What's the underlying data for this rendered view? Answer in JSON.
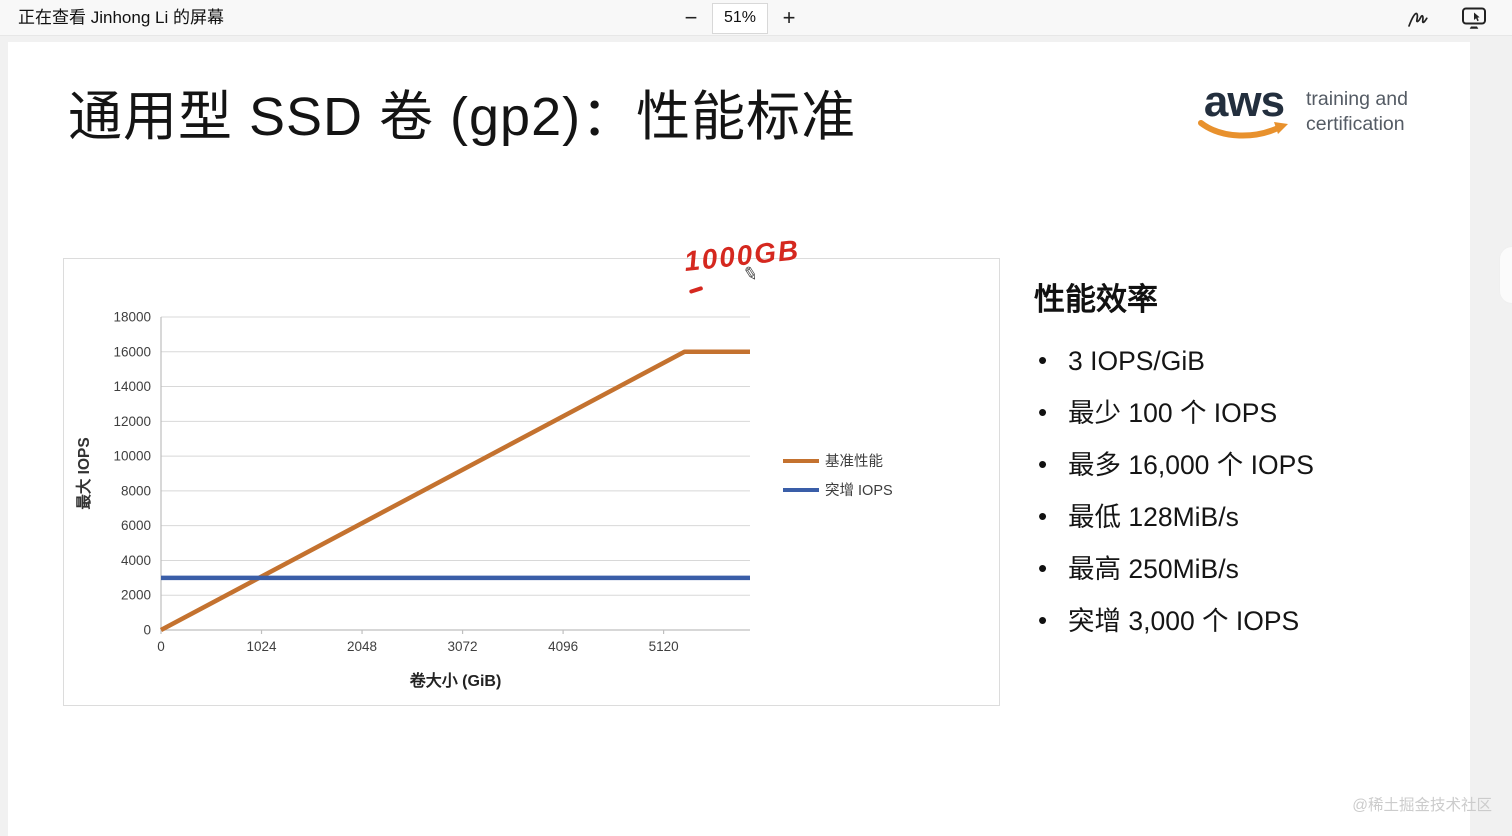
{
  "top_bar": {
    "title": "正在查看 Jinhong Li 的屏幕",
    "zoom_out": "−",
    "zoom_level": "51%",
    "zoom_in": "+",
    "notification_color": "#d29a3f"
  },
  "slide": {
    "title": "通用型 SSD 卷 (gp2)：性能标准",
    "logo": {
      "brand": "aws",
      "tagline_line1": "training and",
      "tagline_line2": "certification",
      "brand_color": "#232f3e",
      "smile_color": "#e8912d",
      "tagline_color": "#545b64"
    },
    "annotation": {
      "text": "1000GB",
      "color": "#d5281f"
    },
    "pencil_glyph": "✎",
    "performance": {
      "heading": "性能效率",
      "bullets": [
        "3 IOPS/GiB",
        "最少 100 个 IOPS",
        "最多 16,000 个 IOPS",
        "最低 128MiB/s",
        "最高 250MiB/s",
        "突增 3,000 个 IOPS"
      ]
    },
    "watermark": "@稀土掘金技术社区"
  },
  "chart_data": {
    "type": "line",
    "title": "",
    "xlabel": "卷大小 (GiB)",
    "ylabel": "最大 IOPS",
    "xlim": [
      0,
      6000
    ],
    "ylim": [
      0,
      18000
    ],
    "x_ticks": [
      0,
      1024,
      2048,
      3072,
      4096,
      5120
    ],
    "y_ticks": [
      0,
      2000,
      4000,
      6000,
      8000,
      10000,
      12000,
      14000,
      16000,
      18000
    ],
    "grid": true,
    "legend_position": "right-middle",
    "axis_color": "#bfbfbf",
    "grid_color": "#d8d8d8",
    "label_color": "#3f3f3f",
    "series": [
      {
        "name": "基准性能",
        "color": "#c4722f",
        "x": [
          0,
          5333,
          6000
        ],
        "y": [
          0,
          16000,
          16000
        ]
      },
      {
        "name": "突增 IOPS",
        "color": "#3a5ea8",
        "x": [
          0,
          6000
        ],
        "y": [
          3000,
          3000
        ]
      }
    ]
  }
}
